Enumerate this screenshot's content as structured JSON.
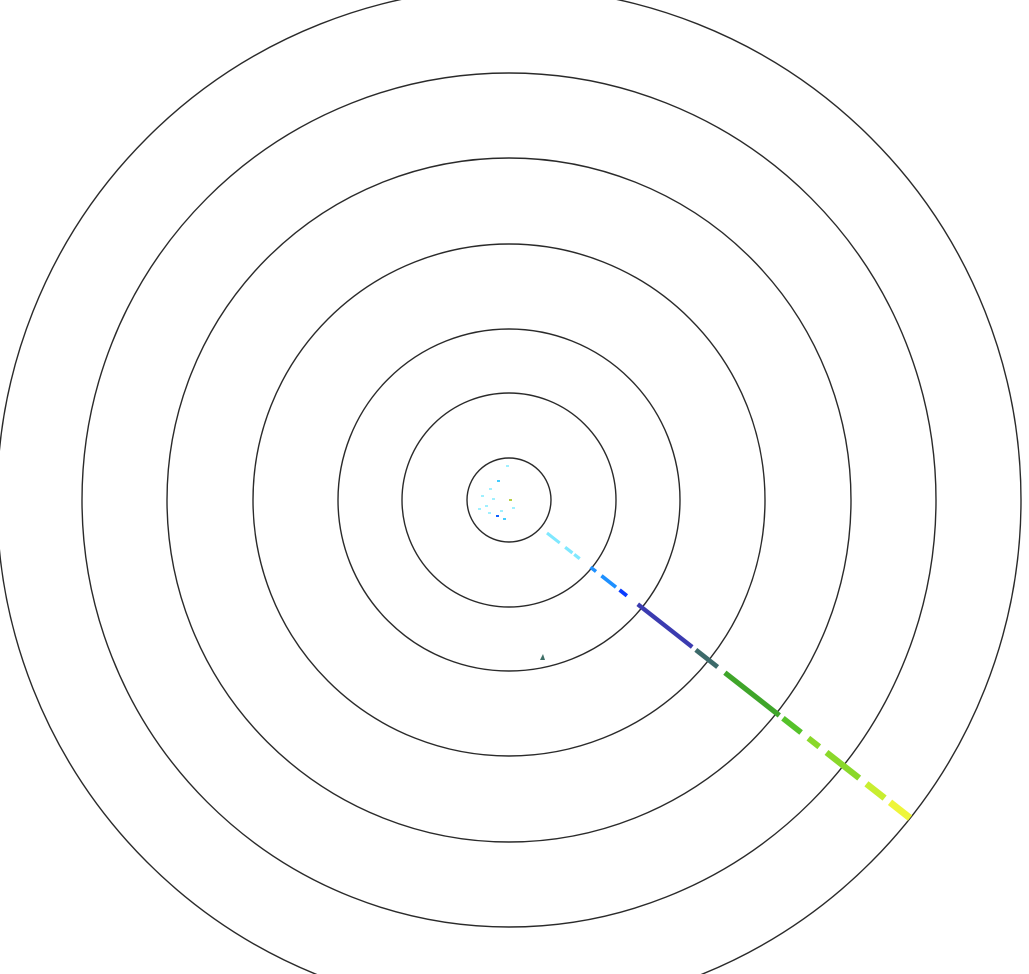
{
  "display": {
    "background": "#ffffff",
    "ring_color": "#2a2a2a",
    "ring_count": 7
  },
  "track": {
    "colors": [
      "#7fe8ff",
      "#1e90ff",
      "#0a3cff",
      "#3b3bb0",
      "#3c6a6a",
      "#2e7d32",
      "#3fa52a",
      "#55c22a",
      "#8ad82a",
      "#c8ee30",
      "#eef53a"
    ]
  },
  "vertex_hits": {
    "colors": [
      "#9ff0ff",
      "#44ccff",
      "#1060ff",
      "#b8d040"
    ]
  },
  "stray_hit": {
    "color": "#3e6e66"
  }
}
